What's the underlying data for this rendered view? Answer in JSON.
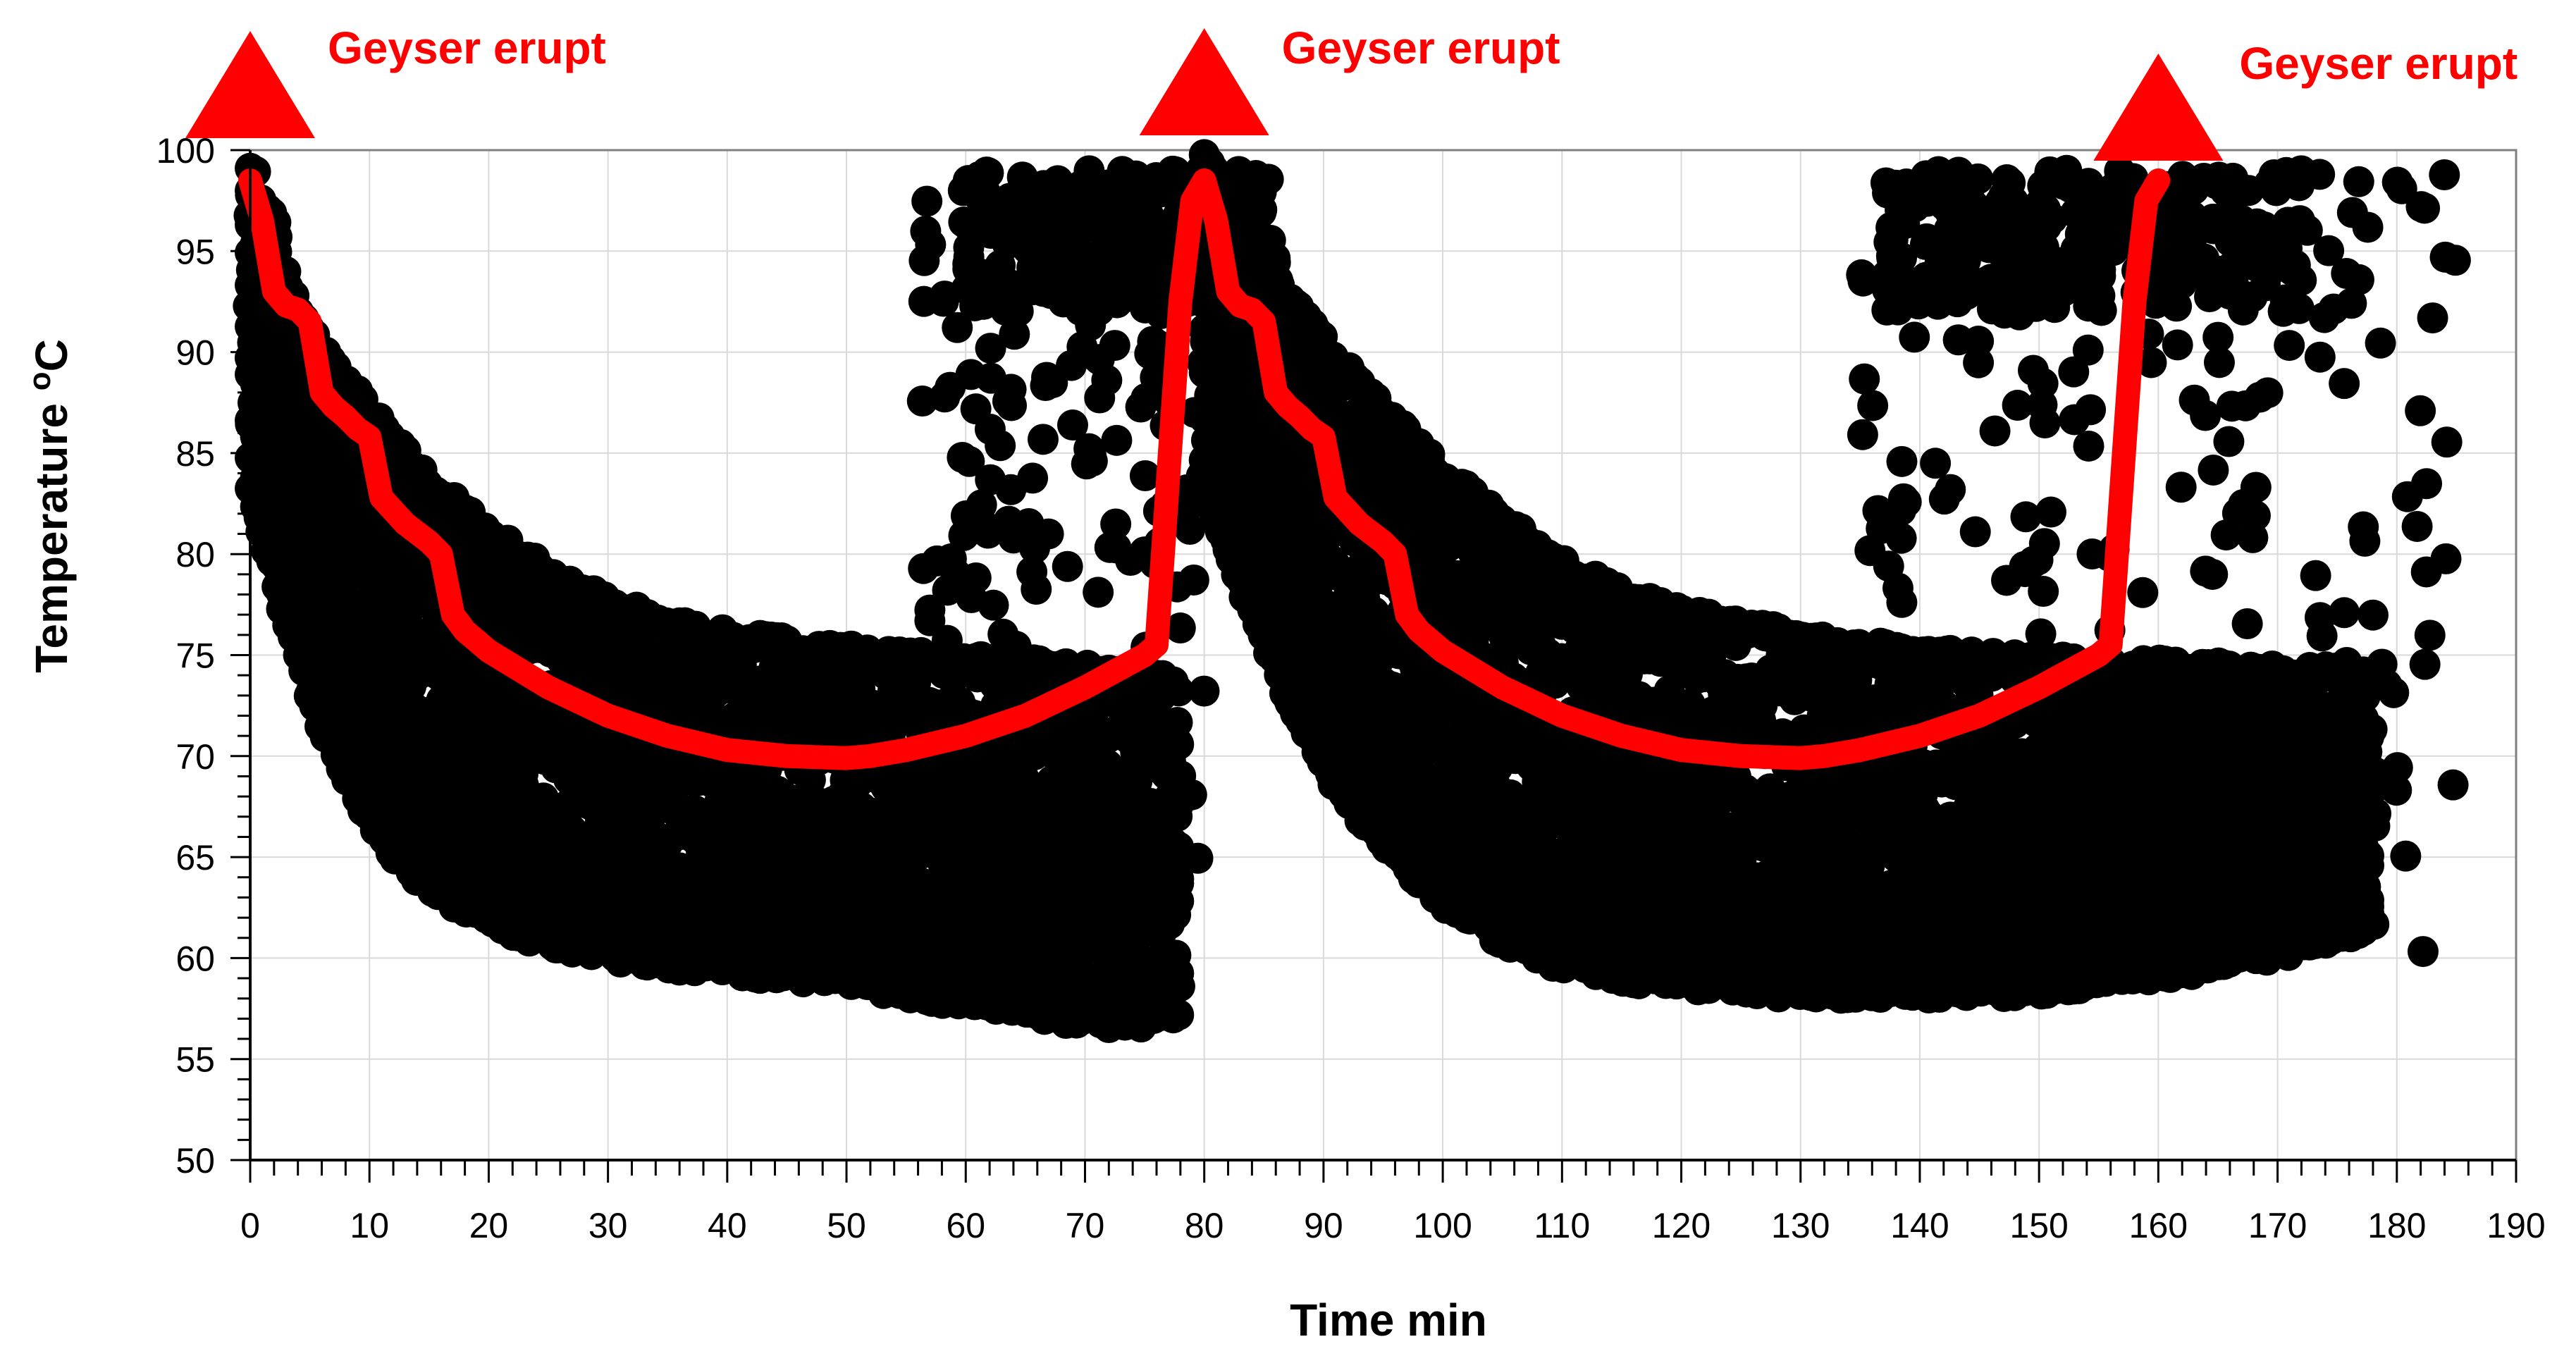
{
  "chart_data": {
    "type": "scatter",
    "title": "",
    "xlabel": "Time min",
    "ylabel": "Temperature oC",
    "ylabel_main": "Temperature ",
    "ylabel_superscript": "o",
    "ylabel_unit": "C",
    "xlim": [
      0,
      190
    ],
    "ylim": [
      50,
      100
    ],
    "x_ticks": [
      0,
      10,
      20,
      30,
      40,
      50,
      60,
      70,
      80,
      90,
      100,
      110,
      120,
      130,
      140,
      150,
      160,
      170,
      180,
      190
    ],
    "y_ticks": [
      50,
      55,
      60,
      65,
      70,
      75,
      80,
      85,
      90,
      95,
      100
    ],
    "grid": true,
    "colors": {
      "points": "#000000",
      "trend": "#ff0000",
      "markers": "#ff0000",
      "grid": "#d9d9d9"
    },
    "annotations": [
      {
        "x": 0,
        "label": "Geyser erupt"
      },
      {
        "x": 80,
        "label": "Geyser erupt"
      },
      {
        "x": 160,
        "label": "Geyser erupt"
      }
    ],
    "series": [
      {
        "kind": "trend-line",
        "x": [
          0,
          1,
          2,
          3,
          4,
          5,
          6,
          7,
          8,
          9,
          10,
          11,
          13,
          15,
          16,
          17,
          18,
          20,
          25,
          30,
          35,
          40,
          45,
          50,
          52,
          55,
          60,
          65,
          70,
          75,
          76,
          77,
          78,
          79,
          80,
          81,
          82,
          83,
          84,
          85,
          86,
          87,
          88,
          89,
          90,
          91,
          93,
          95,
          96,
          97,
          98,
          100,
          105,
          110,
          115,
          120,
          125,
          130,
          132,
          135,
          140,
          145,
          150,
          155,
          156,
          157,
          158,
          159,
          160
        ],
        "y": [
          98.5,
          96.5,
          93,
          92.3,
          92.1,
          91.5,
          88,
          87.3,
          86.8,
          86.2,
          85.8,
          82.8,
          81.5,
          80.6,
          80,
          77,
          76.2,
          75.2,
          73.4,
          72,
          71,
          70.3,
          70,
          69.9,
          70,
          70.3,
          71,
          72,
          73.4,
          75,
          75.5,
          84,
          92.5,
          97.5,
          98.5,
          96.5,
          93,
          92.3,
          92.1,
          91.5,
          88,
          87.3,
          86.8,
          86.2,
          85.8,
          82.8,
          81.5,
          80.6,
          80,
          77,
          76.2,
          75.2,
          73.4,
          72,
          71,
          70.3,
          70,
          69.9,
          70,
          70.3,
          71,
          72,
          73.4,
          75,
          75.5,
          84,
          92.5,
          97.5,
          98.5
        ]
      },
      {
        "kind": "cooling-curves",
        "cycles": [
          {
            "x": [
              0,
              1,
              2,
              3,
              4,
              5,
              6,
              8,
              10,
              12,
              15,
              20,
              25,
              30,
              35,
              40,
              45,
              50,
              52,
              55,
              60,
              65,
              70,
              73,
              75,
              78
            ],
            "curves": [
              [
                99.5,
                97.5,
                96.5,
                93.2,
                92,
                91,
                90,
                88.5,
                87,
                85.5,
                83.5,
                81,
                79,
                77.5,
                76.5,
                75.8,
                75.5,
                75.2,
                74.9,
                74.8,
                74.6,
                74.4,
                74.2,
                74,
                73.8,
                73.5
              ],
              [
                98,
                96,
                94.5,
                93,
                91.5,
                90.5,
                89.5,
                87.5,
                86,
                84.5,
                82.5,
                79.5,
                77.5,
                75.5,
                74.5,
                73.5,
                73,
                72.5,
                72.3,
                72,
                71.8,
                71.5,
                71.2,
                71,
                70.8,
                70.5
              ],
              [
                96.5,
                94.5,
                92.5,
                91,
                89.5,
                88.5,
                87.5,
                85.5,
                84,
                82,
                80,
                77,
                75,
                73.2,
                72,
                71,
                70.2,
                69.5,
                69.2,
                69,
                68.7,
                68.4,
                68.2,
                68,
                67.8,
                67.5
              ],
              [
                95,
                93,
                91,
                89.5,
                88,
                86.5,
                85.5,
                83.5,
                81.5,
                79.5,
                77.5,
                74.5,
                72.2,
                70.6,
                69.5,
                68.5,
                67.8,
                67.2,
                67,
                66.8,
                66.5,
                66.3,
                66,
                65.8,
                65.6,
                65.3
              ],
              [
                93,
                91,
                89,
                87.5,
                86,
                84.5,
                83,
                81,
                79,
                77,
                75,
                72,
                70,
                68.5,
                67.5,
                66.8,
                66.2,
                65.8,
                65.7,
                65.5,
                65.3,
                65.2,
                65,
                64.9,
                64.8,
                64.6
              ],
              [
                91,
                89,
                87,
                85,
                83,
                81.5,
                80,
                77.5,
                75.5,
                73.5,
                71.2,
                68.5,
                66.5,
                65.2,
                64.5,
                64,
                63.6,
                63.3,
                63.2,
                63.2,
                63.2,
                63.3,
                63.4,
                63.5,
                63.7,
                64
              ],
              [
                89,
                87,
                85,
                83,
                81,
                79,
                77.5,
                75,
                73,
                71,
                69,
                66.5,
                64.8,
                63.5,
                62.8,
                62.3,
                62,
                61.8,
                61.8,
                61.8,
                61.9,
                62,
                62.3,
                62.6,
                63,
                63.6
              ],
              [
                87,
                85,
                83,
                81,
                79,
                77,
                75.5,
                73,
                70.8,
                68.8,
                66.8,
                64.5,
                63,
                62,
                61.3,
                61,
                60.8,
                60.6,
                60.6,
                60.6,
                60.7,
                60.9,
                61.2,
                61.6,
                62,
                62.6
              ],
              [
                85,
                83,
                81,
                79,
                77,
                75,
                73.5,
                71,
                69,
                67,
                65,
                63,
                61.8,
                61,
                60.5,
                60.2,
                60,
                59.8,
                59.7,
                59.5,
                59.2,
                59,
                58.8,
                58.7,
                58.7,
                59
              ],
              [
                83,
                81,
                79,
                77,
                75,
                73,
                71.5,
                69,
                67,
                65.2,
                63.5,
                61.8,
                60.8,
                60.2,
                59.8,
                59.5,
                59.2,
                58.9,
                58.7,
                58.4,
                58,
                57.5,
                57,
                56.8,
                57,
                57.5
              ]
            ]
          },
          {
            "x": [
              80,
              81,
              82,
              83,
              84,
              85,
              86,
              88,
              90,
              92,
              95,
              100,
              105,
              110,
              115,
              120,
              125,
              130,
              132,
              135,
              140,
              145,
              150,
              155,
              160,
              165,
              170,
              175,
              178
            ],
            "curves": [
              [
                99.5,
                98.5,
                97.5,
                96.5,
                95.5,
                94.5,
                93.5,
                92,
                90.5,
                89,
                87,
                84,
                81.5,
                79.5,
                78,
                77,
                76.3,
                75.8,
                75.6,
                75.3,
                75,
                74.8,
                74.6,
                74.5,
                74.4,
                74.3,
                74.2,
                74,
                73.8
              ],
              [
                98,
                96.5,
                95,
                94,
                93,
                92,
                91,
                89.5,
                88,
                86.5,
                84.5,
                81.5,
                79,
                77,
                75.5,
                74.5,
                73.6,
                73,
                72.8,
                72.5,
                72.2,
                72,
                71.8,
                71.6,
                71.5,
                71.3,
                71.2,
                71,
                70.8
              ],
              [
                97,
                95,
                93.5,
                92.3,
                91,
                89.8,
                88.8,
                87,
                85.5,
                84,
                82,
                79,
                76.5,
                74.5,
                73,
                71.8,
                70.8,
                70,
                69.8,
                69.5,
                69.2,
                69,
                68.8,
                68.6,
                68.5,
                68.6,
                68.8,
                69.2,
                69.6
              ],
              [
                95,
                93,
                91.5,
                90,
                88.8,
                87.5,
                86.5,
                84.5,
                82.8,
                81.2,
                79,
                76,
                73.5,
                71.5,
                70,
                68.8,
                68,
                67.5,
                67.3,
                67,
                66.8,
                66.8,
                66.9,
                67,
                67.2,
                67.5,
                68,
                68.5,
                69
              ],
              [
                93,
                91,
                89.5,
                88,
                86.5,
                85.2,
                84,
                82,
                80.2,
                78.5,
                76.2,
                73,
                70.6,
                68.8,
                67.5,
                66.6,
                66,
                65.5,
                65.4,
                65.3,
                65.2,
                65.2,
                65.3,
                65.5,
                65.7,
                66,
                66.4,
                66.8,
                67.2
              ],
              [
                91,
                89,
                87.5,
                86,
                84.5,
                83,
                81.8,
                79.5,
                77.5,
                75.8,
                73.5,
                70.5,
                68.2,
                66.5,
                65.3,
                64.5,
                64,
                63.6,
                63.5,
                63.4,
                63.4,
                63.5,
                63.6,
                63.8,
                64,
                64.3,
                64.6,
                65,
                65.4
              ],
              [
                89,
                87,
                85.5,
                84,
                82.5,
                81,
                79.6,
                77.2,
                75.2,
                73.5,
                71.2,
                68.3,
                66.2,
                64.7,
                63.6,
                62.9,
                62.4,
                62.1,
                62,
                62,
                62,
                62.1,
                62.3,
                62.5,
                62.8,
                63.1,
                63.5,
                63.9,
                64.3
              ],
              [
                87,
                85,
                83.5,
                82,
                80.5,
                79,
                77.6,
                75.2,
                73.2,
                71.5,
                69.3,
                66.6,
                64.6,
                63.3,
                62.4,
                61.8,
                61.3,
                61,
                60.9,
                60.8,
                60.8,
                60.9,
                61,
                61.2,
                61.5,
                61.8,
                62.2,
                62.6,
                63
              ],
              [
                85,
                83,
                81.5,
                80,
                78.5,
                77,
                75.6,
                73.2,
                71.2,
                69.5,
                67.4,
                64.7,
                62.8,
                61.5,
                60.6,
                60,
                59.6,
                59.3,
                59.2,
                59.2,
                59.2,
                59.3,
                59.5,
                59.8,
                60.2,
                60.7,
                61.3,
                62,
                62.8
              ],
              [
                84,
                82,
                80.3,
                78.8,
                77.2,
                75.7,
                74.3,
                71.8,
                69.7,
                67.9,
                65.7,
                62.9,
                61,
                59.8,
                59.2,
                58.9,
                58.6,
                58.4,
                58.3,
                58.3,
                58.3,
                58.4,
                58.6,
                58.9,
                59.3,
                59.8,
                60.4,
                61.1,
                61.9
              ]
            ]
          }
        ]
      }
    ]
  }
}
